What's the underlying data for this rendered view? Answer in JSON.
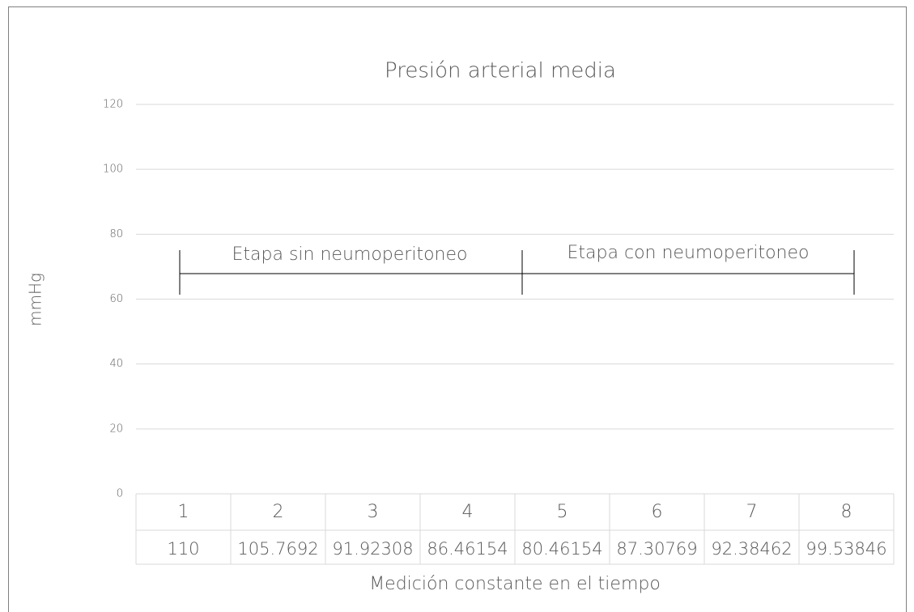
{
  "chart_data": {
    "type": "line",
    "title": "Presión arterial media",
    "y_label": "mmHg",
    "x_label": "Medición constante en el tiempo",
    "categories": [
      "1",
      "2",
      "3",
      "4",
      "5",
      "6",
      "7",
      "8"
    ],
    "series": [
      {
        "color": "#4472c4",
        "values": [
          110,
          105.7692,
          91.92308,
          86.46154,
          80.46154,
          87.30769,
          92.38462,
          99.53846
        ]
      }
    ],
    "ylim": [
      0,
      120
    ],
    "yticks": [
      0,
      20,
      40,
      60,
      80,
      100,
      120
    ],
    "grid": true,
    "annotations": [
      "Etapa sin neumoperitoneo",
      "Etapa con neumoperitoneo"
    ]
  }
}
